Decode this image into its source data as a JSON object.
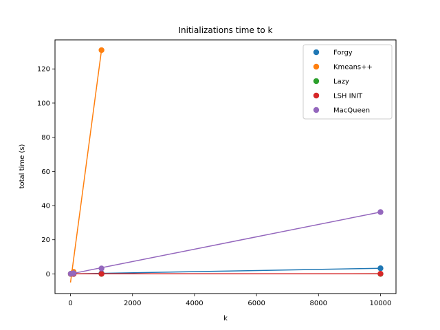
{
  "chart_data": {
    "type": "scatter",
    "title": "Initializations time to k",
    "xlabel": "k",
    "ylabel": "total time (s)",
    "xlim": [
      -500,
      10500
    ],
    "ylim": [
      -11.5,
      137
    ],
    "xticks": [
      0,
      2000,
      4000,
      6000,
      8000,
      10000
    ],
    "yticks": [
      0,
      20,
      40,
      60,
      80,
      100,
      120
    ],
    "legend_position": "top-right",
    "series": [
      {
        "name": "Forgy",
        "color": "#1f77b4",
        "points": [
          [
            10,
            0.02
          ],
          [
            100,
            0.05
          ],
          [
            1000,
            0.35
          ],
          [
            10000,
            3.3
          ]
        ],
        "line": [
          [
            0,
            0.0
          ],
          [
            10000,
            3.3
          ]
        ]
      },
      {
        "name": "Kmeans++",
        "color": "#ff7f0e",
        "points": [
          [
            10,
            0.05
          ],
          [
            100,
            1.2
          ],
          [
            1000,
            131
          ]
        ],
        "line": [
          [
            0,
            -5
          ],
          [
            1000,
            131
          ]
        ]
      },
      {
        "name": "Lazy",
        "color": "#2ca02c",
        "points": [
          [
            10,
            0.0
          ],
          [
            100,
            0.0
          ],
          [
            1000,
            0.0
          ],
          [
            10000,
            0.0
          ]
        ],
        "line": [
          [
            0,
            0.05
          ],
          [
            10000,
            0.05
          ]
        ]
      },
      {
        "name": "LSH INIT",
        "color": "#d62728",
        "points": [
          [
            10,
            0.01
          ],
          [
            100,
            0.02
          ],
          [
            1000,
            0.05
          ],
          [
            10000,
            0.1
          ]
        ],
        "line": [
          [
            0,
            0.05
          ],
          [
            10000,
            0.1
          ]
        ]
      },
      {
        "name": "MacQueen",
        "color": "#9467bd",
        "points": [
          [
            10,
            0.1
          ],
          [
            100,
            0.4
          ],
          [
            1000,
            3.2
          ],
          [
            10000,
            36.2
          ]
        ],
        "line": [
          [
            0,
            0.0
          ],
          [
            10000,
            36.2
          ]
        ]
      }
    ]
  }
}
